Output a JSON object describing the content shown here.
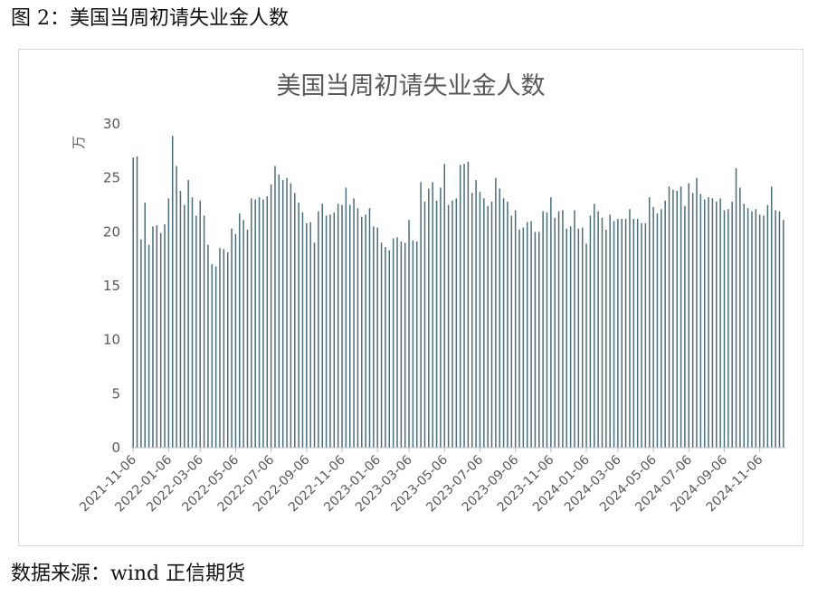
{
  "figure_caption": "图 2：美国当周初请失业金人数",
  "source_note": "数据来源：wind 正信期货",
  "chart_data": {
    "type": "bar",
    "title": "美国当周初请失业金人数",
    "ylabel": "万",
    "xlabel": "",
    "ylim": [
      0,
      30
    ],
    "yticks": [
      0,
      5,
      10,
      15,
      20,
      25,
      30
    ],
    "bar_color": "#4a6d7c",
    "grid": false,
    "x_tick_labels": [
      "2021-11-06",
      "2022-01-06",
      "2022-03-06",
      "2022-05-06",
      "2022-07-06",
      "2022-09-06",
      "2022-11-06",
      "2023-01-06",
      "2023-03-06",
      "2023-05-06",
      "2023-07-06",
      "2023-09-06",
      "2023-11-06",
      "2024-01-06",
      "2024-03-06",
      "2024-05-06",
      "2024-07-06",
      "2024-09-06",
      "2024-11-06"
    ],
    "x_tick_positions": [
      0,
      9,
      17,
      26,
      35,
      44,
      53,
      62,
      70,
      79,
      88,
      97,
      106,
      115,
      123,
      132,
      141,
      150,
      159
    ],
    "values": [
      26.9,
      27.0,
      19.3,
      22.7,
      18.8,
      20.5,
      20.6,
      19.9,
      20.7,
      23.1,
      28.9,
      26.1,
      23.8,
      22.5,
      24.8,
      23.2,
      21.5,
      22.9,
      21.5,
      18.8,
      17.0,
      16.8,
      18.5,
      18.4,
      18.1,
      20.3,
      19.8,
      21.7,
      21.1,
      20.2,
      23.1,
      23.0,
      23.2,
      23.0,
      23.3,
      24.4,
      26.1,
      25.3,
      24.8,
      25.0,
      24.5,
      23.6,
      22.7,
      21.8,
      20.8,
      20.9,
      19.0,
      21.9,
      22.6,
      21.5,
      21.6,
      21.8,
      22.6,
      22.5,
      24.1,
      22.5,
      23.1,
      22.2,
      21.4,
      21.6,
      22.2,
      20.5,
      20.4,
      19.0,
      18.6,
      18.3,
      19.4,
      19.5,
      19.1,
      19.0,
      21.1,
      19.2,
      19.1,
      24.6,
      22.8,
      24.0,
      24.6,
      22.9,
      24.1,
      26.3,
      22.5,
      22.9,
      23.1,
      26.2,
      26.3,
      26.5,
      23.6,
      24.8,
      23.7,
      23.1,
      22.4,
      22.8,
      25.0,
      24.0,
      23.1,
      22.8,
      21.5,
      22.0,
      20.2,
      20.4,
      20.9,
      21.0,
      20.0,
      20.0,
      21.9,
      21.8,
      23.2,
      21.3,
      21.9,
      22.0,
      20.3,
      20.5,
      22.0,
      20.3,
      20.4,
      18.9,
      21.5,
      22.6,
      21.9,
      21.3,
      20.2,
      21.6,
      21.0,
      21.2,
      21.2,
      21.2,
      22.1,
      21.2,
      21.2,
      20.8,
      20.8,
      23.2,
      22.3,
      21.7,
      22.1,
      22.9,
      24.2,
      23.9,
      23.8,
      24.2,
      22.4,
      24.5,
      23.6,
      25.0,
      23.5,
      23.0,
      23.2,
      23.1,
      22.8,
      23.1,
      22.0,
      22.1,
      22.8,
      25.9,
      24.1,
      22.6,
      22.2,
      21.9,
      22.1,
      21.6,
      21.5,
      22.5,
      24.2,
      22.0,
      21.9,
      21.1
    ]
  }
}
